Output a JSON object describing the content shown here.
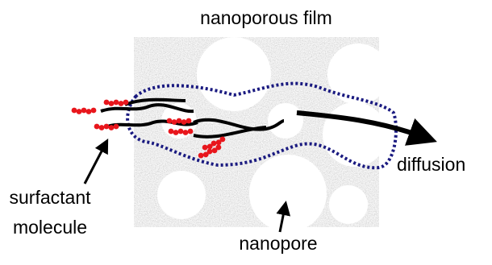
{
  "title": "nanoporous film",
  "labels": {
    "surfactant": [
      "surfactant",
      "molecule"
    ],
    "nanopore": "nanopore",
    "diffusion": "diffusion"
  }
}
